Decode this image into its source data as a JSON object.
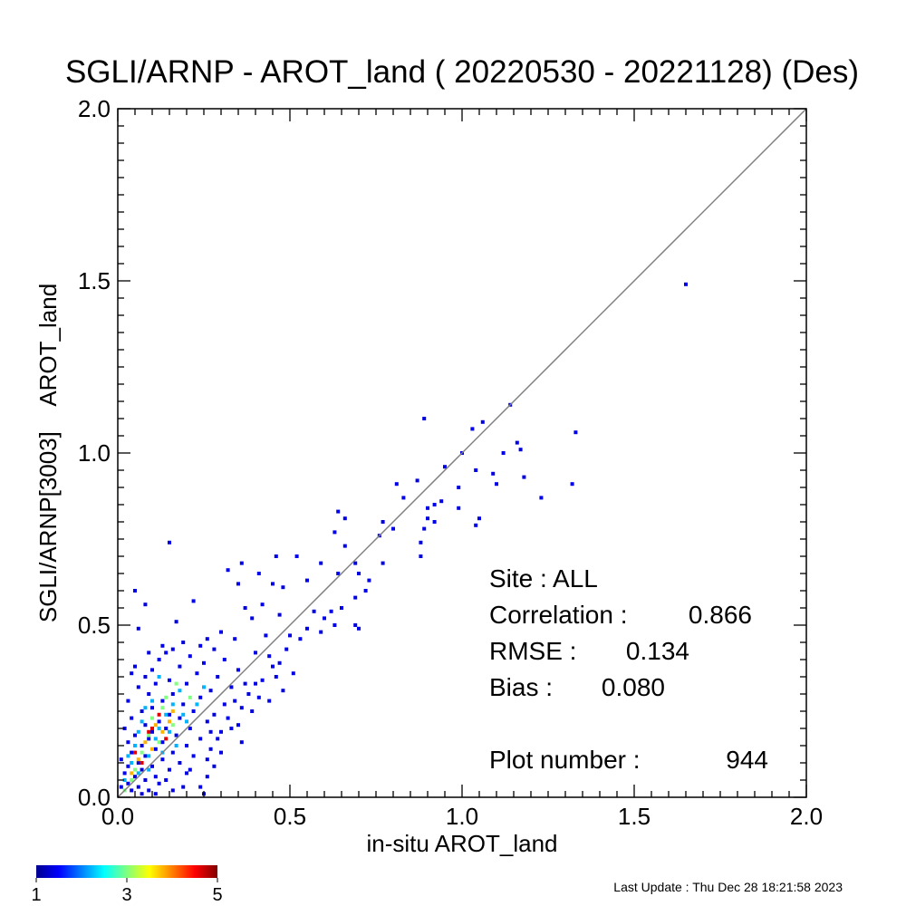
{
  "chart_data": {
    "type": "scatter",
    "title": "SGLI/ARNP - AROT_land ( 20220530 - 20221128) (Des)",
    "xlabel": "in-situ AROT_land",
    "ylabel": "SGLI/ARNP[3003]    AROT_land",
    "xlim": [
      0.0,
      2.0
    ],
    "ylim": [
      0.0,
      2.0
    ],
    "x_ticks": [
      "0.0",
      "0.5",
      "1.0",
      "1.5",
      "2.0"
    ],
    "y_ticks": [
      "0.0",
      "0.5",
      "1.0",
      "1.5",
      "2.0"
    ],
    "one_to_one_line": true,
    "grid": false,
    "colorbar": {
      "min": 1,
      "max": 5,
      "ticks": [
        "1",
        "3",
        "5"
      ],
      "colormap": "jet"
    },
    "stats": {
      "site": "Site : ALL",
      "correlation_label": "Correlation :",
      "correlation": "0.866",
      "rmse_label": "RMSE :",
      "rmse": "0.134",
      "bias_label": "Bias :",
      "bias": "0.080",
      "plot_number_label": "Plot number :",
      "plot_number": "944"
    },
    "points": [
      [
        1.65,
        1.49,
        1
      ],
      [
        1.14,
        1.14,
        1
      ],
      [
        0.89,
        1.1,
        1
      ],
      [
        1.06,
        1.09,
        1
      ],
      [
        1.03,
        1.07,
        1
      ],
      [
        1.33,
        1.06,
        1
      ],
      [
        1.16,
        1.03,
        1
      ],
      [
        1.17,
        1.01,
        1
      ],
      [
        1.12,
        1.0,
        1
      ],
      [
        1.0,
        1.0,
        1
      ],
      [
        0.95,
        0.96,
        1
      ],
      [
        1.04,
        0.95,
        1
      ],
      [
        1.09,
        0.94,
        1
      ],
      [
        1.18,
        0.93,
        1
      ],
      [
        0.87,
        0.92,
        1
      ],
      [
        0.81,
        0.91,
        1
      ],
      [
        1.1,
        0.91,
        1
      ],
      [
        1.32,
        0.91,
        1
      ],
      [
        0.99,
        0.9,
        1
      ],
      [
        0.83,
        0.87,
        1
      ],
      [
        1.23,
        0.87,
        1
      ],
      [
        0.94,
        0.86,
        1
      ],
      [
        0.92,
        0.85,
        1
      ],
      [
        0.9,
        0.84,
        1
      ],
      [
        0.99,
        0.84,
        1
      ],
      [
        0.64,
        0.83,
        1
      ],
      [
        0.66,
        0.81,
        1
      ],
      [
        0.9,
        0.81,
        1
      ],
      [
        1.05,
        0.81,
        1
      ],
      [
        0.77,
        0.8,
        1
      ],
      [
        0.92,
        0.8,
        1
      ],
      [
        1.04,
        0.79,
        1
      ],
      [
        0.8,
        0.78,
        1
      ],
      [
        0.89,
        0.78,
        1
      ],
      [
        0.63,
        0.77,
        1
      ],
      [
        0.76,
        0.76,
        1
      ],
      [
        0.88,
        0.74,
        1
      ],
      [
        0.15,
        0.74,
        1
      ],
      [
        0.66,
        0.73,
        1
      ],
      [
        0.88,
        0.7,
        1
      ],
      [
        0.46,
        0.7,
        1
      ],
      [
        0.52,
        0.7,
        1
      ],
      [
        0.36,
        0.68,
        1
      ],
      [
        0.69,
        0.68,
        1
      ],
      [
        0.77,
        0.68,
        1
      ],
      [
        0.59,
        0.68,
        1
      ],
      [
        0.32,
        0.66,
        1
      ],
      [
        0.41,
        0.65,
        1
      ],
      [
        0.64,
        0.65,
        1
      ],
      [
        0.7,
        0.65,
        1
      ],
      [
        0.73,
        0.63,
        1
      ],
      [
        0.55,
        0.63,
        1
      ],
      [
        0.45,
        0.62,
        1
      ],
      [
        0.35,
        0.62,
        1
      ],
      [
        0.48,
        0.61,
        1
      ],
      [
        0.05,
        0.6,
        1
      ],
      [
        0.72,
        0.6,
        1
      ],
      [
        0.69,
        0.58,
        1
      ],
      [
        0.22,
        0.57,
        1
      ],
      [
        0.42,
        0.56,
        1
      ],
      [
        0.08,
        0.56,
        1
      ],
      [
        0.65,
        0.55,
        1
      ],
      [
        0.37,
        0.55,
        1
      ],
      [
        0.57,
        0.54,
        1
      ],
      [
        0.62,
        0.54,
        1
      ],
      [
        0.47,
        0.53,
        1
      ],
      [
        0.6,
        0.52,
        1
      ],
      [
        0.17,
        0.51,
        1
      ],
      [
        0.39,
        0.52,
        1
      ],
      [
        0.63,
        0.5,
        1
      ],
      [
        0.69,
        0.5,
        1
      ],
      [
        0.7,
        0.49,
        1
      ],
      [
        0.59,
        0.48,
        1
      ],
      [
        0.06,
        0.49,
        1
      ],
      [
        0.55,
        0.49,
        1
      ],
      [
        0.3,
        0.48,
        1
      ],
      [
        0.43,
        0.47,
        1
      ],
      [
        0.5,
        0.47,
        1
      ],
      [
        0.26,
        0.46,
        1
      ],
      [
        0.34,
        0.46,
        1
      ],
      [
        0.19,
        0.45,
        1
      ],
      [
        0.13,
        0.44,
        1
      ],
      [
        0.24,
        0.44,
        1
      ],
      [
        0.14,
        0.42,
        1
      ],
      [
        0.28,
        0.43,
        1
      ],
      [
        0.16,
        0.43,
        1
      ],
      [
        0.4,
        0.42,
        1
      ],
      [
        0.44,
        0.41,
        1
      ],
      [
        0.09,
        0.42,
        1
      ],
      [
        0.21,
        0.41,
        1
      ],
      [
        0.12,
        0.4,
        1
      ],
      [
        0.31,
        0.4,
        1
      ],
      [
        0.25,
        0.39,
        1
      ],
      [
        0.47,
        0.39,
        1
      ],
      [
        0.05,
        0.38,
        1
      ],
      [
        0.1,
        0.37,
        1
      ],
      [
        0.18,
        0.38,
        1
      ],
      [
        0.35,
        0.37,
        1
      ],
      [
        0.04,
        0.36,
        1
      ],
      [
        0.23,
        0.36,
        1
      ],
      [
        0.51,
        0.36,
        1
      ],
      [
        0.29,
        0.35,
        1
      ],
      [
        0.08,
        0.35,
        1
      ],
      [
        0.15,
        0.34,
        1
      ],
      [
        0.42,
        0.34,
        1
      ],
      [
        0.2,
        0.33,
        1
      ],
      [
        0.11,
        0.33,
        1
      ],
      [
        0.33,
        0.32,
        1
      ],
      [
        0.06,
        0.32,
        1
      ],
      [
        0.27,
        0.31,
        1
      ],
      [
        0.16,
        0.3,
        1
      ],
      [
        0.38,
        0.3,
        1
      ],
      [
        0.09,
        0.3,
        1
      ],
      [
        0.24,
        0.29,
        1
      ],
      [
        0.13,
        0.28,
        1
      ],
      [
        0.44,
        0.28,
        1
      ],
      [
        0.03,
        0.28,
        1
      ],
      [
        0.19,
        0.27,
        1
      ],
      [
        0.31,
        0.27,
        1
      ],
      [
        0.1,
        0.26,
        1
      ],
      [
        0.36,
        0.26,
        1
      ],
      [
        0.22,
        0.25,
        1
      ],
      [
        0.07,
        0.25,
        1
      ],
      [
        0.15,
        0.24,
        1
      ],
      [
        0.28,
        0.24,
        1
      ],
      [
        0.04,
        0.23,
        1
      ],
      [
        0.18,
        0.23,
        1
      ],
      [
        0.12,
        0.22,
        1
      ],
      [
        0.26,
        0.22,
        1
      ],
      [
        0.08,
        0.21,
        1
      ],
      [
        0.35,
        0.21,
        1
      ],
      [
        0.21,
        0.2,
        1
      ],
      [
        0.02,
        0.2,
        1
      ],
      [
        0.14,
        0.2,
        1
      ],
      [
        0.3,
        0.19,
        1
      ],
      [
        0.1,
        0.19,
        1
      ],
      [
        0.05,
        0.18,
        1
      ],
      [
        0.17,
        0.18,
        1
      ],
      [
        0.24,
        0.17,
        1
      ],
      [
        0.09,
        0.17,
        1
      ],
      [
        0.13,
        0.16,
        1
      ],
      [
        0.03,
        0.16,
        1
      ],
      [
        0.2,
        0.15,
        1
      ],
      [
        0.07,
        0.15,
        1
      ],
      [
        0.27,
        0.14,
        1
      ],
      [
        0.11,
        0.14,
        1
      ],
      [
        0.16,
        0.13,
        1
      ],
      [
        0.04,
        0.13,
        1
      ],
      [
        0.08,
        0.12,
        1
      ],
      [
        0.22,
        0.12,
        1
      ],
      [
        0.01,
        0.11,
        1
      ],
      [
        0.13,
        0.11,
        1
      ],
      [
        0.06,
        0.1,
        1
      ],
      [
        0.18,
        0.1,
        1
      ],
      [
        0.1,
        0.09,
        1
      ],
      [
        0.03,
        0.09,
        1
      ],
      [
        0.15,
        0.08,
        1
      ],
      [
        0.07,
        0.08,
        1
      ],
      [
        0.2,
        0.07,
        1
      ],
      [
        0.02,
        0.07,
        1
      ],
      [
        0.11,
        0.06,
        1
      ],
      [
        0.05,
        0.06,
        1
      ],
      [
        0.14,
        0.05,
        1
      ],
      [
        0.08,
        0.05,
        1
      ],
      [
        0.26,
        0.06,
        1
      ],
      [
        0.03,
        0.04,
        1
      ],
      [
        0.12,
        0.04,
        1
      ],
      [
        0.06,
        0.03,
        1
      ],
      [
        0.19,
        0.03,
        1
      ],
      [
        0.01,
        0.03,
        1
      ],
      [
        0.09,
        0.02,
        1
      ],
      [
        0.04,
        0.02,
        1
      ],
      [
        0.16,
        0.02,
        1
      ],
      [
        0.07,
        0.01,
        1
      ],
      [
        0.25,
        0.01,
        1
      ],
      [
        0.11,
        0.01,
        1
      ],
      [
        0.28,
        0.09,
        1
      ],
      [
        0.24,
        0.03,
        1
      ],
      [
        0.21,
        0.08,
        1
      ],
      [
        0.29,
        0.17,
        1
      ],
      [
        0.32,
        0.23,
        1
      ],
      [
        0.27,
        0.19,
        1
      ],
      [
        0.4,
        0.33,
        1
      ],
      [
        0.45,
        0.38,
        1
      ],
      [
        0.49,
        0.43,
        1
      ],
      [
        0.53,
        0.46,
        1
      ],
      [
        0.37,
        0.33,
        1
      ],
      [
        0.34,
        0.28,
        1
      ],
      [
        0.41,
        0.29,
        1
      ],
      [
        0.46,
        0.35,
        1
      ],
      [
        0.48,
        0.31,
        1
      ],
      [
        0.39,
        0.25,
        1
      ],
      [
        0.33,
        0.2,
        1
      ],
      [
        0.36,
        0.16,
        1
      ],
      [
        0.3,
        0.13,
        1
      ],
      [
        0.26,
        0.11,
        1
      ],
      [
        0.07,
        0.22,
        2
      ],
      [
        0.1,
        0.28,
        2
      ],
      [
        0.12,
        0.2,
        2
      ],
      [
        0.05,
        0.15,
        2
      ],
      [
        0.14,
        0.24,
        2
      ],
      [
        0.09,
        0.12,
        2
      ],
      [
        0.16,
        0.27,
        2
      ],
      [
        0.04,
        0.1,
        2
      ],
      [
        0.11,
        0.17,
        2
      ],
      [
        0.18,
        0.31,
        2
      ],
      [
        0.06,
        0.19,
        2
      ],
      [
        0.13,
        0.13,
        2
      ],
      [
        0.08,
        0.26,
        2
      ],
      [
        0.03,
        0.12,
        2
      ],
      [
        0.15,
        0.19,
        2
      ],
      [
        0.2,
        0.22,
        2
      ],
      [
        0.02,
        0.05,
        2
      ],
      [
        0.17,
        0.15,
        2
      ],
      [
        0.09,
        0.08,
        2
      ],
      [
        0.23,
        0.27,
        2
      ],
      [
        0.12,
        0.35,
        2
      ],
      [
        0.25,
        0.32,
        2
      ],
      [
        0.19,
        0.24,
        2
      ],
      [
        0.06,
        0.07,
        2
      ],
      [
        0.14,
        0.29,
        3
      ],
      [
        0.1,
        0.23,
        3
      ],
      [
        0.07,
        0.13,
        3
      ],
      [
        0.16,
        0.21,
        3
      ],
      [
        0.05,
        0.08,
        3
      ],
      [
        0.12,
        0.16,
        3
      ],
      [
        0.04,
        0.05,
        3
      ],
      [
        0.17,
        0.33,
        3
      ],
      [
        0.21,
        0.29,
        3
      ],
      [
        0.09,
        0.18,
        3
      ],
      [
        0.02,
        0.02,
        3
      ],
      [
        0.13,
        0.26,
        3
      ],
      [
        0.11,
        0.21,
        4
      ],
      [
        0.08,
        0.16,
        4
      ],
      [
        0.15,
        0.22,
        4
      ],
      [
        0.06,
        0.11,
        4
      ],
      [
        0.1,
        0.14,
        4
      ],
      [
        0.13,
        0.19,
        4
      ],
      [
        0.16,
        0.25,
        4
      ],
      [
        0.04,
        0.07,
        4
      ],
      [
        0.09,
        0.19,
        5
      ],
      [
        0.12,
        0.24,
        5
      ],
      [
        0.07,
        0.1,
        5
      ],
      [
        0.14,
        0.17,
        5
      ],
      [
        0.1,
        0.2,
        5
      ],
      [
        0.05,
        0.13,
        5
      ]
    ]
  },
  "footer": {
    "last_update": "Last Update : Thu Dec 28 18:21:58 2023"
  }
}
